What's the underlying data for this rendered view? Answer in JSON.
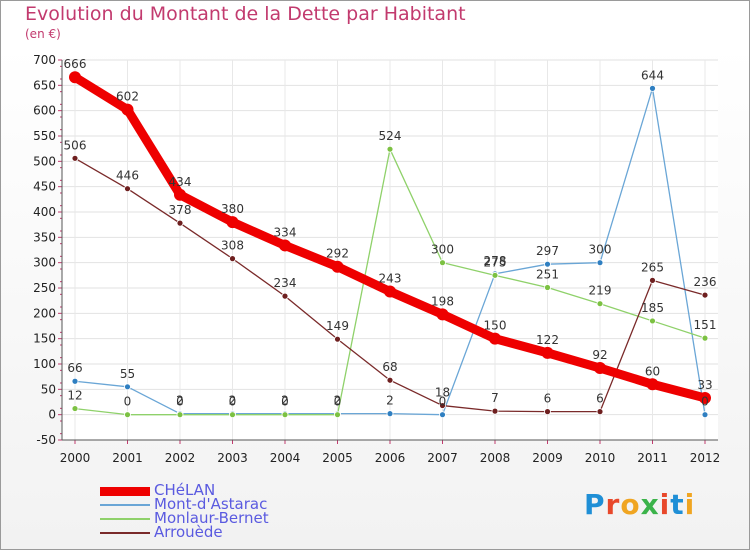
{
  "title": "Evolution du Montant de la Dette par Habitant",
  "subtitle": "(en €)",
  "logo": {
    "text": "Proxiti",
    "colors": [
      "#1f8fd6",
      "#e8482b",
      "#f0a521",
      "#3bb34a",
      "#e8482b",
      "#1f8fd6",
      "#f0a521"
    ]
  },
  "chart_data": {
    "type": "line",
    "x": [
      "2000",
      "2001",
      "2002",
      "2003",
      "2004",
      "2005",
      "2006",
      "2007",
      "2008",
      "2009",
      "2010",
      "2011",
      "2012"
    ],
    "ylim": [
      -50,
      700
    ],
    "yticks": [
      -50,
      0,
      50,
      100,
      150,
      200,
      250,
      300,
      350,
      400,
      450,
      500,
      550,
      600,
      650,
      700
    ],
    "grid": true,
    "legend_position": "bottom-left",
    "series": [
      {
        "name": "CHéLAN",
        "color": "#ee0000",
        "width": 9,
        "marker": 6,
        "labelColor": "#333333",
        "values": [
          666,
          602,
          434,
          380,
          334,
          292,
          243,
          198,
          150,
          122,
          92,
          60,
          33
        ],
        "labels": [
          "666",
          "602",
          "434",
          "380",
          "334",
          "292",
          "243",
          "198",
          "150",
          "122",
          "92",
          "60",
          "33"
        ]
      },
      {
        "name": "Mont-d'Astarac",
        "color": "#6aa6d6",
        "width": 1.3,
        "marker": 3,
        "markerFill": "#2f7fc1",
        "values": [
          66,
          55,
          2,
          2,
          2,
          2,
          2,
          0,
          278,
          297,
          300,
          644,
          0
        ],
        "labels": [
          "66",
          "55",
          "2",
          "2",
          "2",
          "2",
          "2",
          "0",
          "278",
          "297",
          "300",
          "644",
          "0"
        ]
      },
      {
        "name": "Monlaur-Bernet",
        "color": "#8fd16a",
        "width": 1.3,
        "marker": 3,
        "markerFill": "#7cc142",
        "values": [
          12,
          0,
          0,
          0,
          0,
          0,
          524,
          300,
          275,
          251,
          219,
          185,
          151
        ],
        "labels": [
          "12",
          "0",
          "0",
          "0",
          "0",
          "0",
          "524",
          "300",
          "275",
          "251",
          "219",
          "185",
          "151"
        ]
      },
      {
        "name": "Arrouède",
        "color": "#7a2a2a",
        "width": 1.3,
        "marker": 3,
        "markerFill": "#6e1f1f",
        "values": [
          506,
          446,
          378,
          308,
          234,
          149,
          68,
          18,
          7,
          6,
          6,
          265,
          236
        ],
        "labels": [
          "506",
          "446",
          "378",
          "308",
          "234",
          "149",
          "68",
          "18",
          "7",
          "6",
          "6",
          "265",
          "236"
        ]
      }
    ]
  }
}
